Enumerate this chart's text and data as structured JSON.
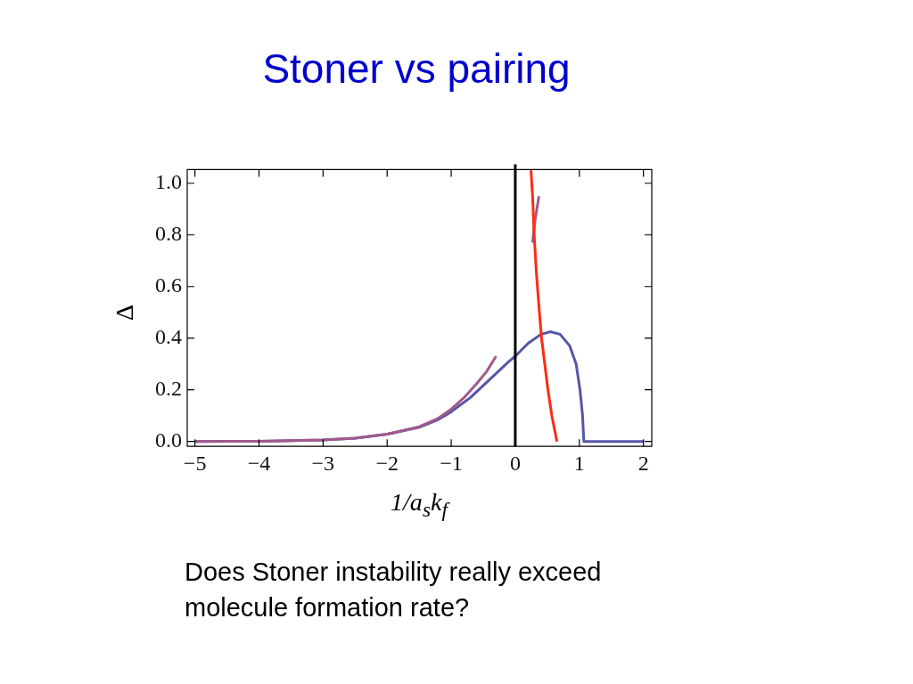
{
  "chart_data": {
    "type": "line",
    "title": "Stoner vs pairing",
    "xlabel": "1/a$_{s}$k$_{f}$",
    "ylabel": "Δ",
    "xlim": [
      -5.12,
      2.13
    ],
    "ylim": [
      -0.019,
      1.053
    ],
    "xticks": [
      {
        "value": -5,
        "label": "−5"
      },
      {
        "value": -4,
        "label": "−4"
      },
      {
        "value": -3,
        "label": "−3"
      },
      {
        "value": -2,
        "label": "−2"
      },
      {
        "value": -1,
        "label": "−1"
      },
      0,
      1,
      2
    ],
    "yticks": [
      {
        "value": 0,
        "label": "0.0"
      },
      {
        "value": 0.2,
        "label": "0.2"
      },
      {
        "value": 0.4,
        "label": "0.4"
      },
      {
        "value": 0.6,
        "label": "0.6"
      },
      {
        "value": 0.8,
        "label": "0.8"
      },
      {
        "value": 1,
        "label": "1.0"
      }
    ],
    "marker": "none",
    "series": [
      {
        "color": "#5656a8",
        "x": [
          -5,
          -4,
          -3,
          -2.5,
          -2,
          -1.5,
          -1.2,
          -1,
          -0.7,
          -0.4,
          -0.1,
          0,
          0.2,
          0.4,
          0.55,
          0.7,
          0.85,
          0.95,
          1.01,
          1.05,
          1.07,
          1.5,
          2
        ],
        "values": [
          0,
          0.001,
          0.006,
          0.013,
          0.028,
          0.055,
          0.085,
          0.115,
          0.17,
          0.24,
          0.31,
          0.33,
          0.38,
          0.415,
          0.425,
          0.415,
          0.37,
          0.3,
          0.2,
          0.1,
          0,
          0,
          0
        ]
      },
      {
        "color": "#a05a8c",
        "x": [
          -5,
          -4,
          -3,
          -2.5,
          -2,
          -1.5,
          -1.2,
          -1,
          -0.8,
          -0.6,
          -0.45,
          -0.3,
          0,
          0.27,
          0.31,
          0.37
        ],
        "values": [
          0,
          0.001,
          0.006,
          0.013,
          0.028,
          0.057,
          0.09,
          0.125,
          0.17,
          0.225,
          0.27,
          0.33,
          null,
          0.77,
          0.86,
          0.95
        ]
      },
      {
        "color": "#ff2a10",
        "x": [
          0.245,
          0.27,
          0.295,
          0.33,
          0.37,
          0.41,
          0.46,
          0.51,
          0.57,
          0.65
        ],
        "values": [
          1.05,
          0.95,
          0.8,
          0.65,
          0.52,
          0.4,
          0.3,
          0.2,
          0.1,
          0
        ]
      }
    ],
    "ref_lines": [
      {
        "axis": "x",
        "value": 0,
        "color": "#000000"
      }
    ],
    "annotations": [
      "Does Stoner instability really exceed molecule formation rate?"
    ]
  }
}
